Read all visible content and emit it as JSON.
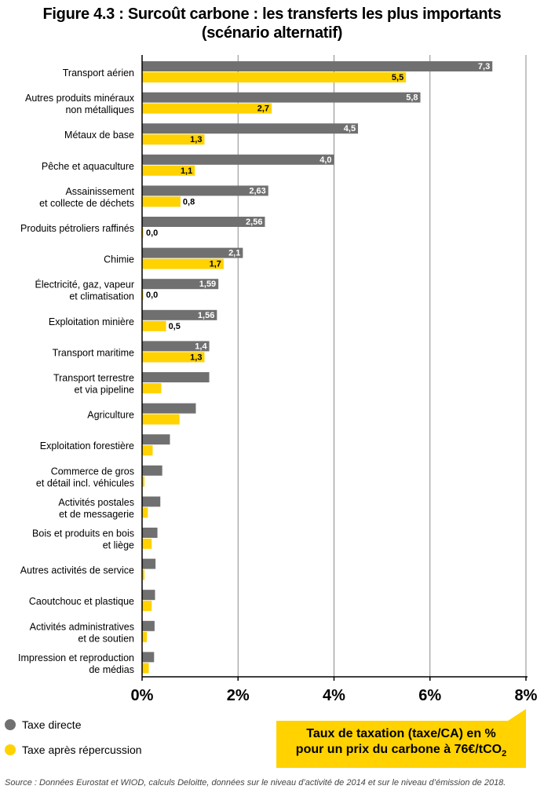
{
  "title": {
    "line1": "Figure 4.3 : Surcoût carbone : les transferts les plus importants",
    "line2": "(scénario alternatif)"
  },
  "colors": {
    "direct": "#707070",
    "after": "#ffd200",
    "grid": "#8a8a8a",
    "axis": "#000000"
  },
  "legend": {
    "direct": "Taxe directe",
    "after": "Taxe après répercussion"
  },
  "note": {
    "line1": "Taux de taxation (taxe/CA) en %",
    "line2_main": "pour un prix du carbone à 76€/tCO",
    "line2_sub": "2"
  },
  "source": "Source : Données Eurostat et WIOD, calculs Deloitte, données sur le niveau d’activité de 2014 et sur le niveau d’émission de 2018.",
  "chart_data": {
    "type": "bar",
    "orientation": "horizontal",
    "xlim": [
      0,
      8
    ],
    "xticks": [
      "0%",
      "2%",
      "4%",
      "6%",
      "8%"
    ],
    "grid": true,
    "categories": [
      [
        "Transport aérien"
      ],
      [
        "Autres produits minéraux",
        "non métalliques"
      ],
      [
        "Métaux de base"
      ],
      [
        "Pêche et aquaculture"
      ],
      [
        "Assainissement",
        "et collecte de déchets"
      ],
      [
        "Produits pétroliers raffinés"
      ],
      [
        "Chimie"
      ],
      [
        "Électricité, gaz, vapeur",
        "et climatisation"
      ],
      [
        "Exploitation minière"
      ],
      [
        "Transport maritime"
      ],
      [
        "Transport terrestre",
        "et via pipeline"
      ],
      [
        "Agriculture"
      ],
      [
        "Exploitation forestière"
      ],
      [
        "Commerce de gros",
        "et détail incl. véhicules"
      ],
      [
        "Activités postales",
        "et de messagerie"
      ],
      [
        "Bois et produits en bois",
        "et liège"
      ],
      [
        "Autres activités de service"
      ],
      [
        "Caoutchouc et plastique"
      ],
      [
        "Activités administratives",
        "et de soutien"
      ],
      [
        "Impression et reproduction",
        "de médias"
      ]
    ],
    "series": [
      {
        "name": "Taxe directe",
        "values": [
          7.3,
          5.8,
          4.5,
          4.0,
          2.63,
          2.56,
          2.1,
          1.59,
          1.56,
          1.4,
          1.4,
          1.12,
          0.58,
          0.42,
          0.38,
          0.32,
          0.28,
          0.27,
          0.26,
          0.25
        ],
        "labels": [
          "7,3",
          "5,8",
          "4,5",
          "4,0",
          "2,63",
          "2,56",
          "2,1",
          "1,59",
          "1,56",
          "1,4",
          "",
          "",
          "",
          "",
          "",
          "",
          "",
          "",
          "",
          ""
        ]
      },
      {
        "name": "Taxe après répercussion",
        "values": [
          5.5,
          2.7,
          1.3,
          1.1,
          0.8,
          0.0,
          1.7,
          0.0,
          0.5,
          1.3,
          0.4,
          0.78,
          0.22,
          0.05,
          0.12,
          0.2,
          0.05,
          0.2,
          0.1,
          0.14
        ],
        "labels": [
          "5,5",
          "2,7",
          "1,3",
          "1,1",
          "0,8",
          "0,0",
          "1,7",
          "0,0",
          "0,5",
          "1,3",
          "",
          "",
          "",
          "",
          "",
          "",
          "",
          "",
          "",
          ""
        ]
      }
    ]
  }
}
